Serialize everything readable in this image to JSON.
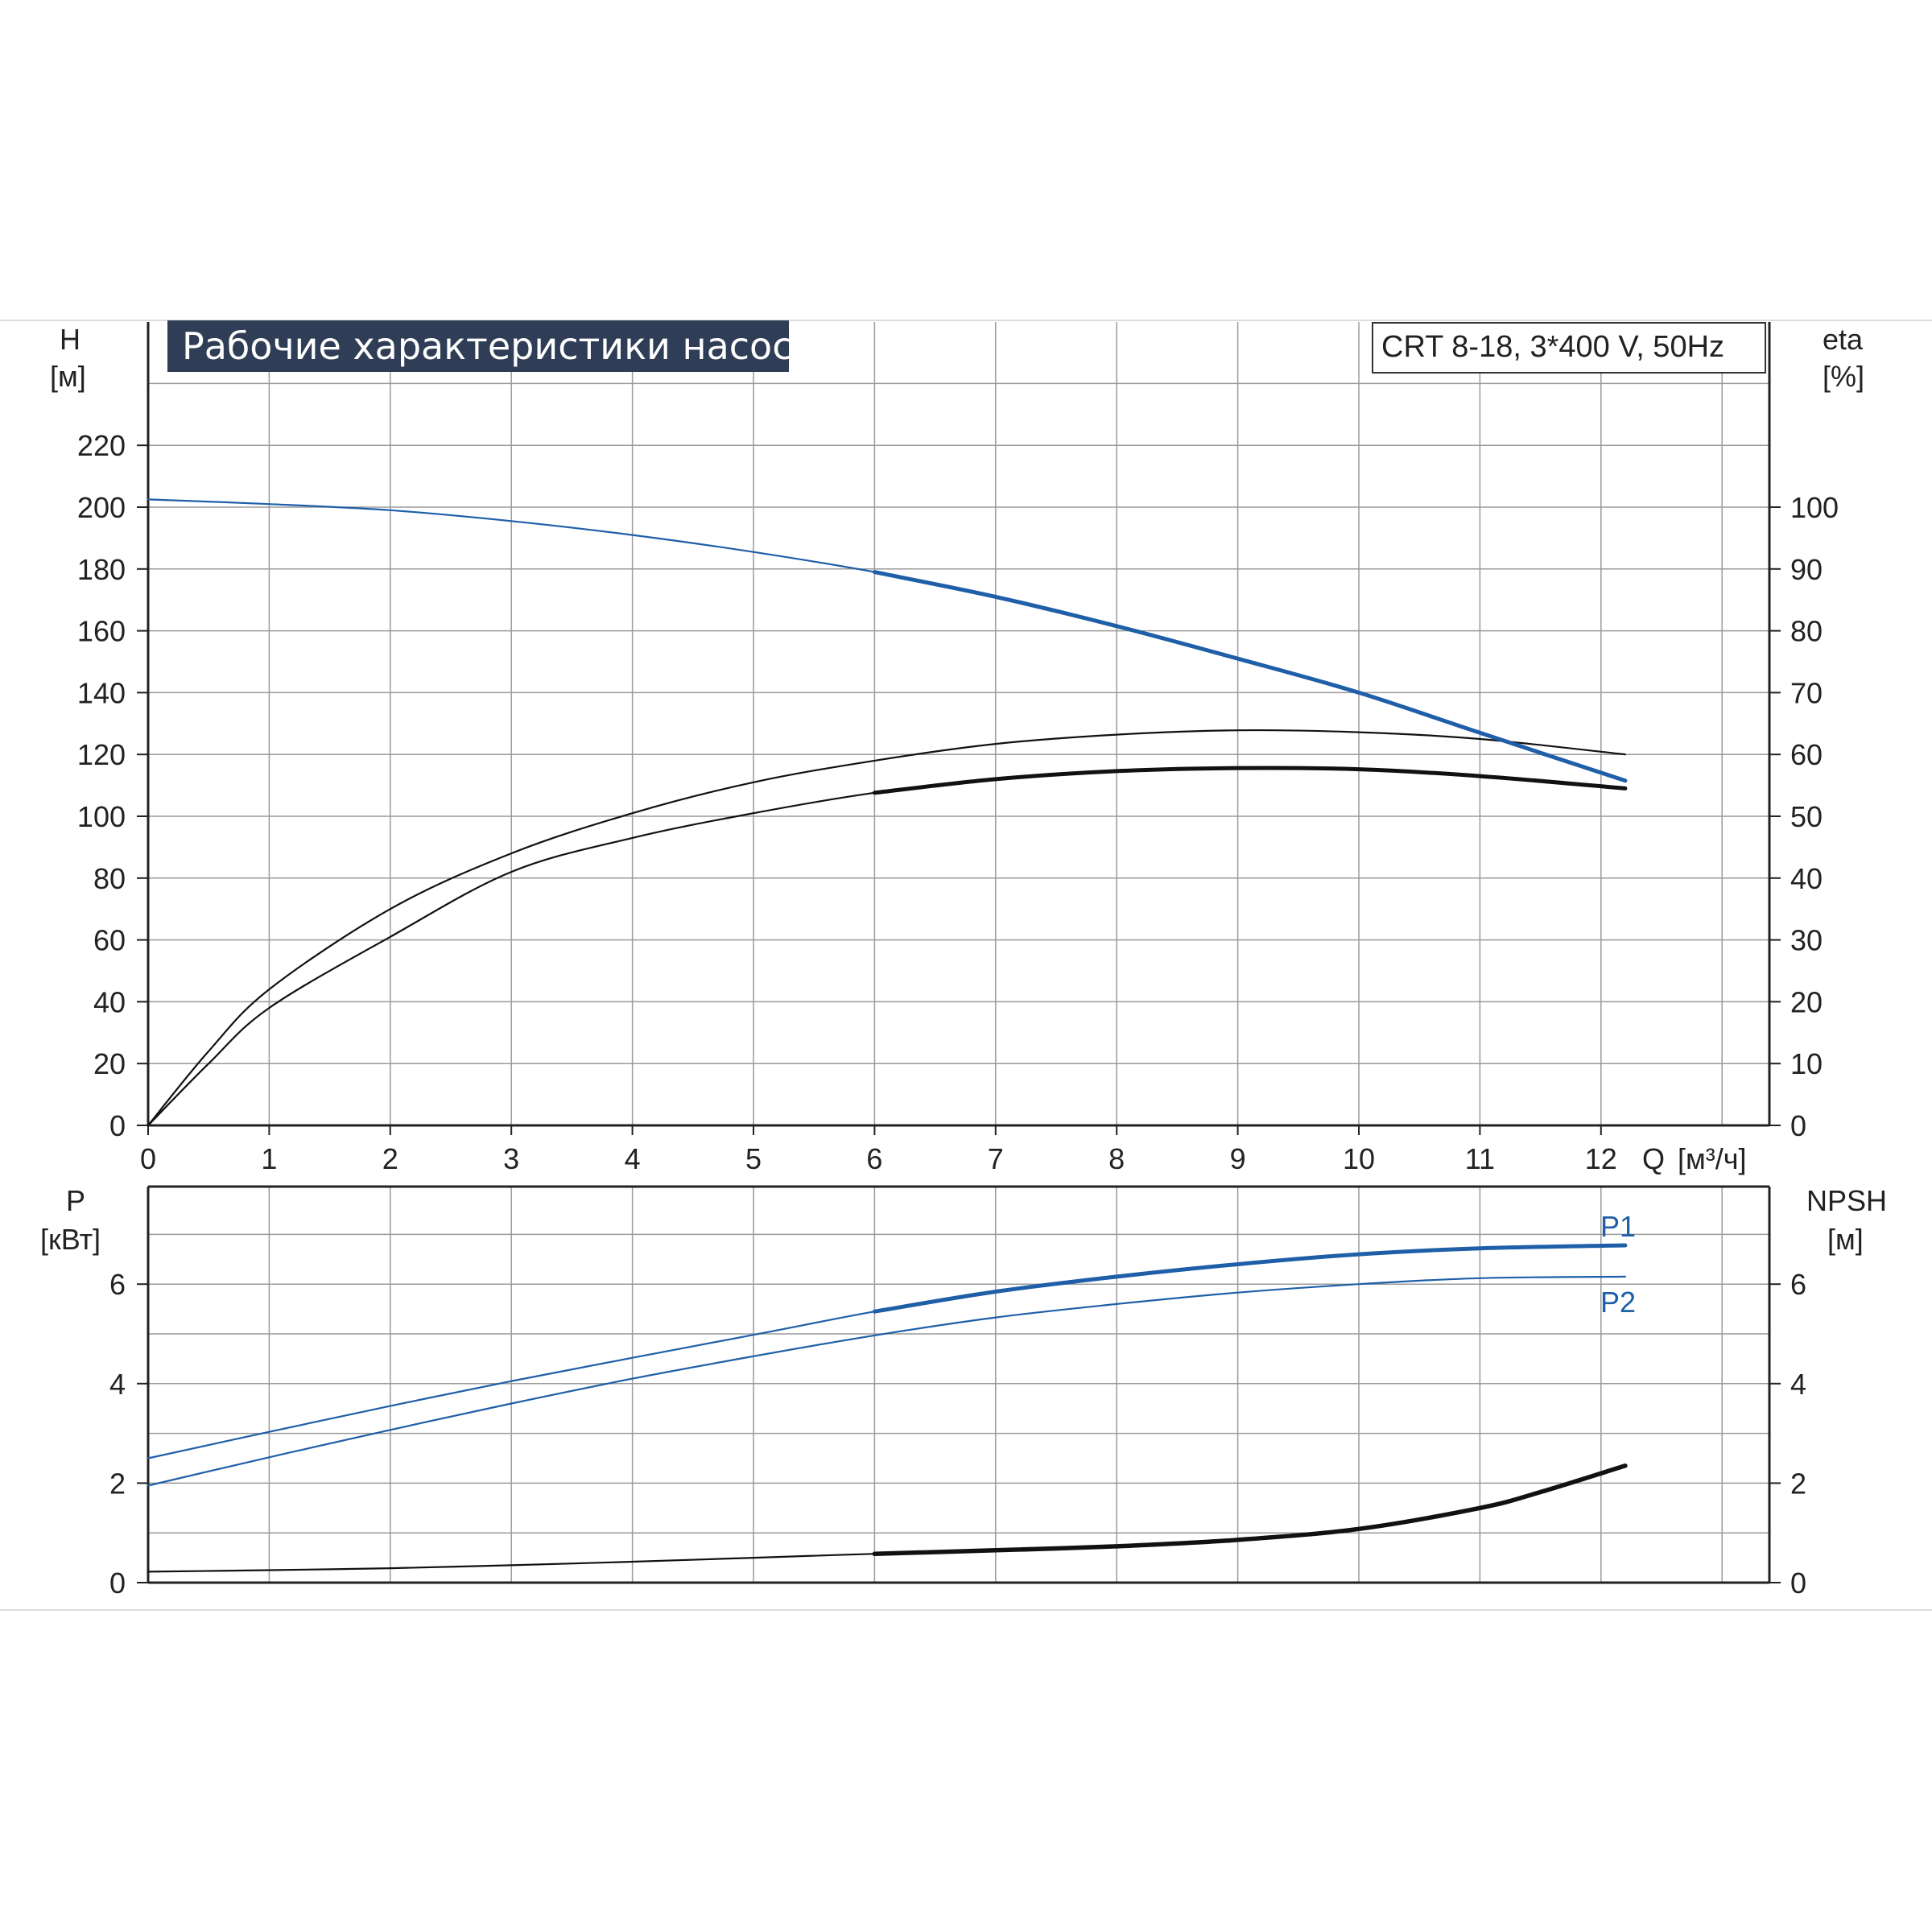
{
  "header": {
    "title": "Рабочие характеристики насоса",
    "model": "CRT 8-18, 3*400 V, 50Hz"
  },
  "axes": {
    "top_left_label": "H",
    "top_left_unit": "[м]",
    "top_right_label": "eta",
    "top_right_unit": "[%]",
    "x_label": "Q",
    "x_unit": "[м³/ч]",
    "bottom_left_label": "P",
    "bottom_left_unit": "[кВт]",
    "bottom_right_label": "NPSH",
    "bottom_right_unit": "[м]"
  },
  "colors": {
    "blue": "#1f5fa8",
    "dark": "#111111",
    "grid": "#9a9a9a",
    "axis": "#222222"
  },
  "chart_data": [
    {
      "type": "line",
      "panel": "top",
      "xlabel": "Q [м³/ч]",
      "ylabel": "H [м]",
      "y2label": "eta [%]",
      "xlim": [
        0,
        13.3
      ],
      "ylim": [
        0,
        240
      ],
      "y2lim": [
        0,
        120
      ],
      "x_ticks": [
        0,
        1,
        2,
        3,
        4,
        5,
        6,
        7,
        8,
        9,
        10,
        11,
        12
      ],
      "y_ticks": [
        0,
        20,
        40,
        60,
        80,
        100,
        120,
        140,
        160,
        180,
        200,
        220
      ],
      "y2_ticks": [
        0,
        10,
        20,
        30,
        40,
        50,
        60,
        70,
        80,
        90,
        100
      ],
      "grid": true,
      "series": [
        {
          "key": "H",
          "axis": "left",
          "color": "#1f5fa8",
          "x": [
            0,
            1,
            2,
            3,
            4,
            5,
            6,
            7,
            8,
            9,
            10,
            11,
            12.2
          ],
          "y": [
            202.5,
            201,
            199,
            195.5,
            191,
            185.5,
            179,
            171,
            161.5,
            151,
            140,
            127,
            111.5
          ]
        },
        {
          "key": "eta_upper",
          "axis": "right",
          "color": "#111111",
          "x": [
            0,
            0.5,
            1,
            2,
            3,
            4,
            5,
            6,
            7,
            8,
            9,
            10,
            11,
            12.2
          ],
          "y": [
            0,
            12,
            22,
            35,
            44,
            50.5,
            55.5,
            59,
            61.7,
            63.2,
            63.9,
            63.6,
            62.5,
            60
          ]
        },
        {
          "key": "eta_lower",
          "axis": "right",
          "color": "#111111",
          "x": [
            0,
            0.5,
            1,
            2,
            3,
            4,
            5,
            6,
            7,
            8,
            9,
            10,
            11,
            12.2
          ],
          "y": [
            0,
            10,
            19,
            30.5,
            41,
            46.5,
            50.5,
            53.8,
            56,
            57.3,
            57.8,
            57.6,
            56.5,
            54.5
          ]
        }
      ]
    },
    {
      "type": "line",
      "panel": "bottom",
      "xlim": [
        0,
        13.3
      ],
      "ylim": [
        0,
        7.5
      ],
      "y2lim": [
        0,
        7.5
      ],
      "y_ticks": [
        0,
        2,
        4,
        6
      ],
      "y2_ticks": [
        0,
        2,
        4,
        6
      ],
      "grid": true,
      "series": [
        {
          "key": "P1",
          "name": "P1",
          "axis": "left",
          "color": "#1f5fa8",
          "x": [
            0,
            1,
            2,
            3,
            4,
            5,
            6,
            7,
            8,
            9,
            10,
            11,
            12.2
          ],
          "y": [
            2.5,
            3.03,
            3.55,
            4.05,
            4.52,
            4.98,
            5.45,
            5.85,
            6.15,
            6.4,
            6.6,
            6.72,
            6.78
          ]
        },
        {
          "key": "P2",
          "name": "P2",
          "axis": "left",
          "color": "#1f5fa8",
          "x": [
            0,
            1,
            2,
            3,
            4,
            5,
            6,
            7,
            8,
            9,
            10,
            11,
            12.2
          ],
          "y": [
            1.95,
            2.52,
            3.07,
            3.6,
            4.1,
            4.55,
            4.97,
            5.33,
            5.6,
            5.83,
            6.0,
            6.12,
            6.15
          ]
        },
        {
          "key": "NPSH",
          "axis": "right",
          "color": "#111111",
          "x": [
            0,
            1,
            2,
            3,
            4,
            5,
            6,
            7,
            8,
            9,
            10,
            11,
            11.5,
            12.2
          ],
          "y": [
            0.22,
            0.25,
            0.29,
            0.35,
            0.42,
            0.5,
            0.58,
            0.65,
            0.73,
            0.86,
            1.08,
            1.5,
            1.82,
            2.35
          ]
        }
      ]
    }
  ]
}
